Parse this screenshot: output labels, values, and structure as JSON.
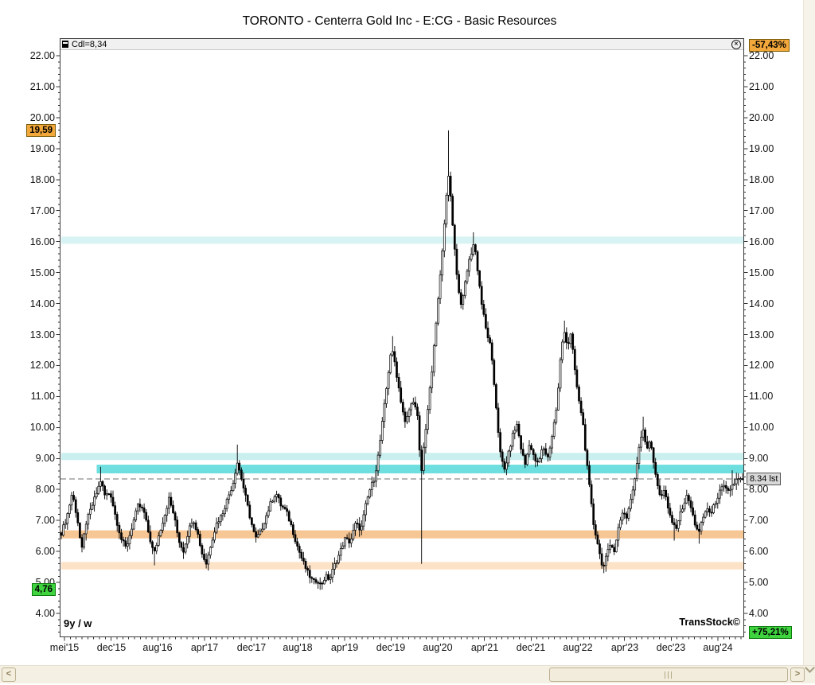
{
  "window": {
    "title": "TORONTO - Centerra Gold Inc - E:CG - Basic Resources"
  },
  "legend": {
    "label": "Cdl=8,34",
    "close_glyph": "✕"
  },
  "footer": {
    "range_label": "9y / w",
    "watermark": "TransStock©"
  },
  "scrollbar": {
    "left_glyph": "<",
    "right_glyph": ">"
  },
  "icons": {
    "legend_series": "candle-icon",
    "legend_close": "circled-x-close-icon",
    "scroll_left": "chevron-left-icon",
    "scroll_right": "chevron-right-icon",
    "scroll_down": "chevron-down-icon"
  },
  "chart_data": {
    "type": "candlestick",
    "title": "TORONTO - Centerra Gold Inc - E:CG - Basic Resources",
    "timeframe": "weekly",
    "range": "9y",
    "ylim": [
      4,
      22
    ],
    "y_tick_step": 1.0,
    "y_minor_step": 0.2,
    "grid": false,
    "x_ticks": [
      "mei'15",
      "dec'15",
      "aug'16",
      "apr'17",
      "dec'17",
      "aug'18",
      "apr'19",
      "dec'19",
      "aug'20",
      "apr'21",
      "dec'21",
      "aug'22",
      "apr'23",
      "dec'23",
      "aug'24"
    ],
    "x_tick_start_f": 0.0047,
    "x_tick_step_f": 0.0685,
    "levels": {
      "bands": [
        {
          "from": 15.93,
          "to": 16.16,
          "color": "#d8f3f3",
          "x_start": 0
        },
        {
          "from": 8.95,
          "to": 9.18,
          "color": "#c9efef",
          "x_start": 0
        },
        {
          "from": 8.52,
          "to": 8.8,
          "color": "#6edede",
          "x_start": 0.052
        },
        {
          "from": 6.42,
          "to": 6.68,
          "color": "#f7c695",
          "x_start": 0
        },
        {
          "from": 5.42,
          "to": 5.66,
          "color": "#fce2c6",
          "x_start": 0
        }
      ],
      "dashed_line": {
        "value": 8.34,
        "color": "#8c8c8c"
      }
    },
    "markers": {
      "high": {
        "label": "19,59",
        "value": 19.59
      },
      "low": {
        "label": "4,76",
        "value": 4.76
      },
      "last": {
        "label": "8.34 lst",
        "value": 8.34
      },
      "pct_from_high": {
        "label": "-57,43%"
      },
      "pct_from_low": {
        "label": "+75,21%"
      }
    },
    "last": 8.34,
    "colors": {
      "up_body": "#ffffff",
      "down_body": "#000000",
      "outline": "#000000",
      "badge_orange": "#f3a83b",
      "badge_green": "#3fd43f",
      "badge_grey": "#d8d8d8",
      "band_cyan_light": "#d8f3f3",
      "band_cyan_strong": "#6edede",
      "band_orange": "#f7c695",
      "band_orange_light": "#fce2c6"
    },
    "series": [
      {
        "name": "Cdl",
        "points": [
          [
            0.0,
            6.6
          ],
          [
            0.008,
            7.1
          ],
          [
            0.016,
            7.9
          ],
          [
            0.024,
            7.0
          ],
          [
            0.03,
            6.0
          ],
          [
            0.036,
            6.9
          ],
          [
            0.044,
            7.4
          ],
          [
            0.052,
            7.9
          ],
          [
            0.058,
            8.3
          ],
          [
            0.064,
            7.8
          ],
          [
            0.072,
            7.9
          ],
          [
            0.08,
            7.1
          ],
          [
            0.088,
            6.4
          ],
          [
            0.095,
            6.1
          ],
          [
            0.105,
            6.9
          ],
          [
            0.113,
            7.5
          ],
          [
            0.121,
            7.3
          ],
          [
            0.129,
            6.5
          ],
          [
            0.136,
            5.9
          ],
          [
            0.144,
            6.6
          ],
          [
            0.152,
            7.2
          ],
          [
            0.158,
            7.7
          ],
          [
            0.165,
            7.2
          ],
          [
            0.172,
            6.4
          ],
          [
            0.179,
            6.0
          ],
          [
            0.186,
            6.6
          ],
          [
            0.193,
            7.1
          ],
          [
            0.2,
            6.6
          ],
          [
            0.207,
            5.9
          ],
          [
            0.213,
            5.6
          ],
          [
            0.22,
            6.3
          ],
          [
            0.228,
            6.9
          ],
          [
            0.236,
            7.2
          ],
          [
            0.244,
            7.7
          ],
          [
            0.252,
            8.2
          ],
          [
            0.258,
            8.9
          ],
          [
            0.263,
            8.5
          ],
          [
            0.27,
            7.8
          ],
          [
            0.278,
            7.0
          ],
          [
            0.285,
            6.4
          ],
          [
            0.292,
            6.6
          ],
          [
            0.3,
            7.1
          ],
          [
            0.308,
            7.6
          ],
          [
            0.315,
            7.9
          ],
          [
            0.322,
            7.5
          ],
          [
            0.33,
            7.3
          ],
          [
            0.338,
            6.8
          ],
          [
            0.346,
            6.2
          ],
          [
            0.354,
            5.7
          ],
          [
            0.362,
            5.3
          ],
          [
            0.37,
            5.0
          ],
          [
            0.376,
            5.1
          ],
          [
            0.381,
            4.9
          ],
          [
            0.388,
            5.2
          ],
          [
            0.394,
            5.1
          ],
          [
            0.4,
            5.5
          ],
          [
            0.408,
            5.9
          ],
          [
            0.416,
            6.4
          ],
          [
            0.424,
            6.3
          ],
          [
            0.432,
            6.9
          ],
          [
            0.44,
            6.7
          ],
          [
            0.447,
            7.5
          ],
          [
            0.453,
            8.0
          ],
          [
            0.46,
            8.4
          ],
          [
            0.466,
            9.2
          ],
          [
            0.472,
            10.3
          ],
          [
            0.478,
            11.4
          ],
          [
            0.484,
            12.5
          ],
          [
            0.488,
            12.3
          ],
          [
            0.493,
            11.6
          ],
          [
            0.499,
            10.8
          ],
          [
            0.505,
            10.1
          ],
          [
            0.511,
            10.6
          ],
          [
            0.517,
            10.9
          ],
          [
            0.523,
            10.3
          ],
          [
            0.528,
            8.4
          ],
          [
            0.533,
            9.6
          ],
          [
            0.539,
            10.8
          ],
          [
            0.545,
            12.0
          ],
          [
            0.551,
            13.6
          ],
          [
            0.556,
            14.8
          ],
          [
            0.561,
            16.3
          ],
          [
            0.566,
            17.6
          ],
          [
            0.569,
            18.2
          ],
          [
            0.573,
            17.0
          ],
          [
            0.578,
            15.6
          ],
          [
            0.583,
            14.4
          ],
          [
            0.588,
            13.9
          ],
          [
            0.594,
            14.9
          ],
          [
            0.6,
            15.5
          ],
          [
            0.606,
            16.0
          ],
          [
            0.611,
            15.1
          ],
          [
            0.617,
            14.0
          ],
          [
            0.623,
            13.2
          ],
          [
            0.63,
            12.6
          ],
          [
            0.637,
            11.0
          ],
          [
            0.644,
            9.2
          ],
          [
            0.65,
            8.6
          ],
          [
            0.657,
            9.2
          ],
          [
            0.663,
            9.8
          ],
          [
            0.669,
            10.1
          ],
          [
            0.675,
            9.3
          ],
          [
            0.681,
            8.8
          ],
          [
            0.687,
            9.5
          ],
          [
            0.694,
            9.0
          ],
          [
            0.7,
            8.8
          ],
          [
            0.707,
            9.4
          ],
          [
            0.714,
            9.0
          ],
          [
            0.721,
            9.8
          ],
          [
            0.728,
            10.8
          ],
          [
            0.733,
            12.3
          ],
          [
            0.738,
            13.2
          ],
          [
            0.743,
            12.6
          ],
          [
            0.748,
            13.0
          ],
          [
            0.753,
            12.0
          ],
          [
            0.759,
            10.9
          ],
          [
            0.765,
            10.3
          ],
          [
            0.77,
            9.1
          ],
          [
            0.776,
            7.9
          ],
          [
            0.781,
            6.9
          ],
          [
            0.787,
            6.3
          ],
          [
            0.792,
            5.7
          ],
          [
            0.796,
            5.5
          ],
          [
            0.801,
            5.9
          ],
          [
            0.807,
            6.3
          ],
          [
            0.812,
            6.0
          ],
          [
            0.818,
            6.8
          ],
          [
            0.824,
            7.3
          ],
          [
            0.83,
            7.1
          ],
          [
            0.836,
            7.7
          ],
          [
            0.842,
            8.3
          ],
          [
            0.848,
            9.4
          ],
          [
            0.854,
            10.0
          ],
          [
            0.859,
            9.3
          ],
          [
            0.864,
            9.6
          ],
          [
            0.869,
            8.9
          ],
          [
            0.875,
            8.2
          ],
          [
            0.88,
            7.7
          ],
          [
            0.885,
            8.0
          ],
          [
            0.89,
            7.4
          ],
          [
            0.896,
            7.0
          ],
          [
            0.901,
            6.7
          ],
          [
            0.907,
            7.1
          ],
          [
            0.913,
            7.5
          ],
          [
            0.919,
            7.8
          ],
          [
            0.924,
            7.4
          ],
          [
            0.93,
            6.9
          ],
          [
            0.936,
            6.6
          ],
          [
            0.942,
            7.1
          ],
          [
            0.948,
            7.4
          ],
          [
            0.954,
            7.2
          ],
          [
            0.96,
            7.6
          ],
          [
            0.966,
            7.9
          ],
          [
            0.972,
            8.1
          ],
          [
            0.978,
            7.9
          ],
          [
            0.984,
            8.1
          ],
          [
            0.991,
            8.3
          ],
          [
            1.0,
            8.34
          ]
        ]
      }
    ],
    "spikes": [
      {
        "f": 0.058,
        "price": 8.73,
        "kind": "high"
      },
      {
        "f": 0.136,
        "price": 5.55,
        "kind": "low"
      },
      {
        "f": 0.213,
        "price": 5.45,
        "kind": "low"
      },
      {
        "f": 0.258,
        "price": 9.45,
        "kind": "high"
      },
      {
        "f": 0.381,
        "price": 4.76,
        "kind": "low"
      },
      {
        "f": 0.485,
        "price": 12.95,
        "kind": "high"
      },
      {
        "f": 0.528,
        "price": 5.6,
        "kind": "low"
      },
      {
        "f": 0.569,
        "price": 19.59,
        "kind": "high"
      },
      {
        "f": 0.606,
        "price": 16.3,
        "kind": "high"
      },
      {
        "f": 0.738,
        "price": 13.45,
        "kind": "high"
      },
      {
        "f": 0.796,
        "price": 5.3,
        "kind": "low"
      },
      {
        "f": 0.854,
        "price": 10.35,
        "kind": "high"
      },
      {
        "f": 0.901,
        "price": 6.35,
        "kind": "low"
      },
      {
        "f": 0.936,
        "price": 6.25,
        "kind": "low"
      },
      {
        "f": 0.985,
        "price": 8.62,
        "kind": "high"
      }
    ]
  }
}
